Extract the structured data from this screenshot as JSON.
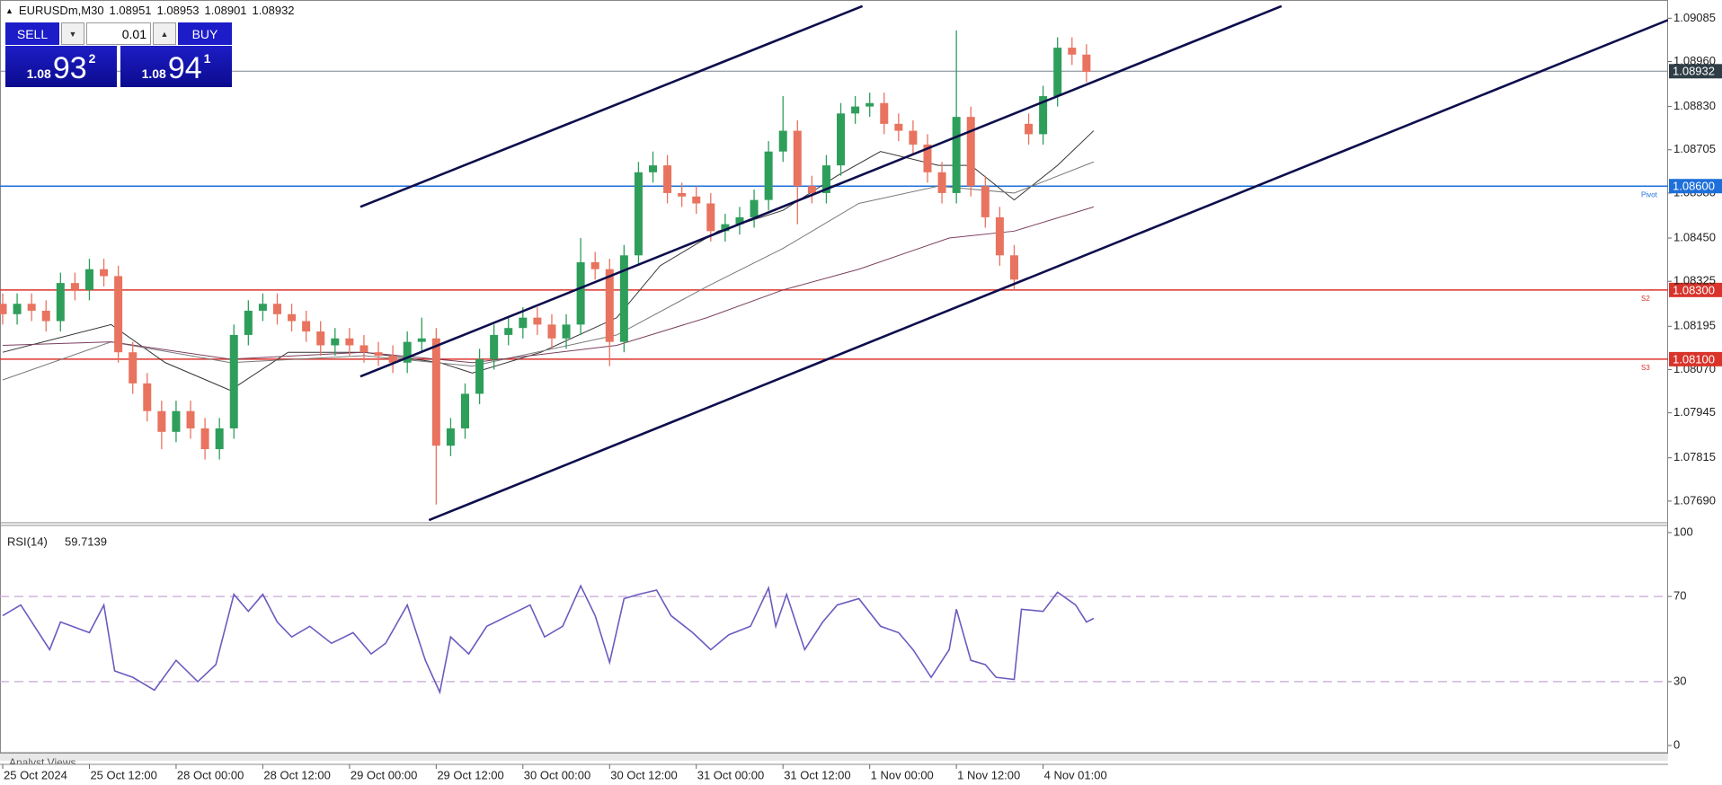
{
  "chart_data": [
    {
      "type": "candlestick",
      "symbol": "EURUSDm,M30",
      "quote": [
        1.08951,
        1.08953,
        1.08901,
        1.08932
      ],
      "xlim": [
        0,
        461
      ],
      "xticks": [
        {
          "value": 0,
          "label": "25 Oct 2024"
        },
        {
          "value": 24,
          "label": "25 Oct 12:00"
        },
        {
          "value": 48,
          "label": "28 Oct 00:00"
        },
        {
          "value": 72,
          "label": "28 Oct 12:00"
        },
        {
          "value": 96,
          "label": "29 Oct 00:00"
        },
        {
          "value": 120,
          "label": "29 Oct 12:00"
        },
        {
          "value": 144,
          "label": "30 Oct 00:00"
        },
        {
          "value": 168,
          "label": "30 Oct 12:00"
        },
        {
          "value": 192,
          "label": "31 Oct 00:00"
        },
        {
          "value": 216,
          "label": "31 Oct 12:00"
        },
        {
          "value": 240,
          "label": "1 Nov 00:00"
        },
        {
          "value": 264,
          "label": "1 Nov 12:00"
        },
        {
          "value": 288,
          "label": "4 Nov 01:00"
        }
      ],
      "ylim": [
        1.0763,
        1.0913
      ],
      "yticks": [
        1.09085,
        {
          "value": 1.0896,
          "label": "1.08960"
        },
        {
          "value": 1.0883,
          "label": "1.08830"
        },
        1.08705,
        {
          "value": 1.0858,
          "label": "1.08580"
        },
        {
          "value": 1.0845,
          "label": "1.08450"
        },
        1.08325,
        1.08195,
        {
          "value": 1.0807,
          "label": "1.08070"
        },
        1.07945,
        1.07815,
        {
          "value": 1.0769,
          "label": "1.07690"
        }
      ],
      "up_color": "#2e9e5b",
      "down_color": "#e8735f",
      "candles": {
        "x": [
          0,
          4,
          8,
          12,
          16,
          20,
          24,
          28,
          32,
          36,
          40,
          44,
          48,
          52,
          56,
          60,
          64,
          68,
          72,
          76,
          80,
          84,
          88,
          92,
          96,
          100,
          104,
          108,
          112,
          116,
          120,
          124,
          128,
          132,
          136,
          140,
          144,
          148,
          152,
          156,
          160,
          164,
          168,
          172,
          176,
          180,
          184,
          188,
          192,
          196,
          200,
          204,
          208,
          212,
          216,
          220,
          224,
          228,
          232,
          236,
          240,
          244,
          248,
          252,
          256,
          260,
          264,
          268,
          272,
          276,
          280,
          284,
          288,
          292,
          296,
          300
        ],
        "open": [
          1.0826,
          1.0823,
          1.0826,
          1.0824,
          1.0821,
          1.0832,
          1.083,
          1.0836,
          1.0834,
          1.0812,
          1.0803,
          1.0795,
          1.0789,
          1.0795,
          1.079,
          1.0784,
          1.079,
          1.0817,
          1.0824,
          1.0826,
          1.0823,
          1.0821,
          1.0818,
          1.0814,
          1.0816,
          1.0814,
          1.0812,
          1.0811,
          1.0809,
          1.0815,
          1.0816,
          1.0785,
          1.079,
          1.08,
          1.081,
          1.0817,
          1.0819,
          1.0822,
          1.082,
          1.0816,
          1.082,
          1.0838,
          1.0836,
          1.0815,
          1.084,
          1.0864,
          1.0866,
          1.0858,
          1.0857,
          1.0855,
          1.0847,
          1.0849,
          1.0851,
          1.0856,
          1.087,
          1.0876,
          1.086,
          1.0858,
          1.0866,
          1.0881,
          1.0883,
          1.0884,
          1.0878,
          1.0876,
          1.0872,
          1.0864,
          1.0858,
          1.088,
          1.086,
          1.0851,
          1.084,
          1.0878,
          1.0875,
          1.0886,
          1.09,
          1.0898
        ],
        "high": [
          1.0829,
          1.0829,
          1.0829,
          1.0827,
          1.0835,
          1.0835,
          1.0839,
          1.0839,
          1.0837,
          1.0815,
          1.0806,
          1.0798,
          1.0798,
          1.0798,
          1.0793,
          1.0793,
          1.082,
          1.0827,
          1.0829,
          1.0829,
          1.0826,
          1.0824,
          1.0821,
          1.0819,
          1.0819,
          1.0817,
          1.0815,
          1.0814,
          1.0818,
          1.0822,
          1.0819,
          1.0793,
          1.0803,
          1.0813,
          1.082,
          1.0822,
          1.0825,
          1.0825,
          1.0823,
          1.0823,
          1.0845,
          1.0841,
          1.0839,
          1.0843,
          1.0867,
          1.087,
          1.0869,
          1.0861,
          1.086,
          1.0858,
          1.0852,
          1.0854,
          1.0859,
          1.0873,
          1.0886,
          1.0879,
          1.0863,
          1.0869,
          1.0884,
          1.0886,
          1.0887,
          1.0887,
          1.0881,
          1.0879,
          1.0875,
          1.0867,
          1.0905,
          1.0883,
          1.0863,
          1.0854,
          1.0843,
          1.0881,
          1.0889,
          1.0903,
          1.0903,
          1.0901
        ],
        "low": [
          1.082,
          1.082,
          1.0821,
          1.0818,
          1.0818,
          1.0827,
          1.0827,
          1.0831,
          1.0809,
          1.08,
          1.0792,
          1.0784,
          1.0786,
          1.0787,
          1.0781,
          1.0781,
          1.0787,
          1.0814,
          1.0821,
          1.082,
          1.0818,
          1.0815,
          1.0811,
          1.0811,
          1.0811,
          1.0809,
          1.0808,
          1.0806,
          1.0806,
          1.0812,
          1.0768,
          1.0782,
          1.0787,
          1.0797,
          1.0807,
          1.0814,
          1.0816,
          1.0817,
          1.0813,
          1.0813,
          1.0817,
          1.0833,
          1.0808,
          1.0812,
          1.0837,
          1.0861,
          1.0855,
          1.0854,
          1.0852,
          1.0844,
          1.0844,
          1.0846,
          1.0848,
          1.0853,
          1.0867,
          1.0849,
          1.0855,
          1.0855,
          1.0863,
          1.0878,
          1.088,
          1.0875,
          1.0873,
          1.0869,
          1.0861,
          1.0855,
          1.0855,
          1.0857,
          1.0848,
          1.0837,
          1.083,
          1.0872,
          1.0872,
          1.0883,
          1.0895,
          1.089
        ],
        "close": [
          1.0823,
          1.0826,
          1.0824,
          1.0821,
          1.0832,
          1.083,
          1.0836,
          1.0834,
          1.0812,
          1.0803,
          1.0795,
          1.0789,
          1.0795,
          1.079,
          1.0784,
          1.079,
          1.0817,
          1.0824,
          1.0826,
          1.0823,
          1.0821,
          1.0818,
          1.0814,
          1.0816,
          1.0814,
          1.0812,
          1.0811,
          1.0809,
          1.0815,
          1.0816,
          1.0785,
          1.079,
          1.08,
          1.081,
          1.0817,
          1.0819,
          1.0822,
          1.082,
          1.0816,
          1.082,
          1.0838,
          1.0836,
          1.0815,
          1.084,
          1.0864,
          1.0866,
          1.0858,
          1.0857,
          1.0855,
          1.0847,
          1.0849,
          1.0851,
          1.0856,
          1.087,
          1.0876,
          1.086,
          1.0858,
          1.0866,
          1.0881,
          1.0883,
          1.0884,
          1.0878,
          1.0876,
          1.0872,
          1.0864,
          1.0858,
          1.088,
          1.086,
          1.0851,
          1.084,
          1.0833,
          1.0875,
          1.0886,
          1.09,
          1.0898,
          1.0893
        ]
      },
      "moving_averages": [
        {
          "color": "#333333",
          "x": [
            0,
            30,
            45,
            63,
            79,
            100,
            121,
            130,
            149,
            170,
            182,
            198,
            216,
            231,
            243,
            259,
            268,
            280,
            292,
            302
          ],
          "values": [
            1.0812,
            1.082,
            1.0809,
            1.0801,
            1.0812,
            1.0812,
            1.0809,
            1.0806,
            1.0812,
            1.0822,
            1.0837,
            1.0847,
            1.0853,
            1.0863,
            1.087,
            1.0866,
            1.0866,
            1.0856,
            1.0866,
            1.0876
          ]
        },
        {
          "color": "#7a7a7a",
          "x": [
            0,
            30,
            63,
            100,
            130,
            170,
            195,
            216,
            237,
            259,
            280,
            302
          ],
          "values": [
            1.0804,
            1.0815,
            1.0809,
            1.0811,
            1.0808,
            1.0817,
            1.0831,
            1.0842,
            1.0855,
            1.086,
            1.0858,
            1.0867
          ]
        },
        {
          "color": "#7b3f5e",
          "x": [
            0,
            30,
            63,
            100,
            130,
            170,
            195,
            216,
            237,
            262,
            280,
            302
          ],
          "values": [
            1.0814,
            1.0815,
            1.081,
            1.0812,
            1.0809,
            1.0814,
            1.0822,
            1.083,
            1.0836,
            1.0845,
            1.0847,
            1.0854
          ]
        }
      ],
      "channel": {
        "color": "#0d0d4d",
        "lines": [
          {
            "x": [
              99,
              238
            ],
            "values": [
              1.0854,
              1.0912
            ]
          },
          {
            "x": [
              99,
              354
            ],
            "values": [
              1.0805,
              1.0912
            ]
          },
          {
            "x": [
              118,
              461
            ],
            "values": [
              1.07635,
              1.0908
            ]
          }
        ]
      },
      "levels": [
        {
          "value": 1.086,
          "label": "1.08600",
          "color": "#1e6fd9",
          "tag": "Pivot"
        },
        {
          "value": 1.083,
          "label": "1.08300",
          "color": "#d9342b",
          "tag": "S2"
        },
        {
          "value": 1.081,
          "label": "1.08100",
          "color": "#d9342b",
          "tag": "S3"
        }
      ],
      "last_price": 1.08932,
      "last_price_color": "#7a8690"
    },
    {
      "type": "line",
      "title": "RSI(14)",
      "current": 59.7139,
      "color": "#6b5bbf",
      "ylim": [
        0,
        100
      ],
      "yticks": [
        0,
        30,
        70,
        100
      ],
      "levels": [
        30,
        70
      ],
      "x": [
        0,
        5,
        13,
        16,
        24,
        28,
        31,
        36,
        42,
        48,
        54,
        59,
        64,
        68,
        72,
        76,
        80,
        85,
        91,
        97,
        102,
        106,
        112,
        117,
        121,
        124,
        129,
        134,
        140,
        146,
        150,
        155,
        160,
        164,
        168,
        172,
        176,
        181,
        185,
        191,
        196,
        201,
        207,
        212,
        214,
        217,
        222,
        227,
        231,
        237,
        243,
        248,
        252,
        257,
        262,
        264,
        268,
        272,
        275,
        280,
        282,
        288,
        292,
        297,
        300,
        302
      ],
      "values": [
        61,
        66,
        45,
        58,
        53,
        66,
        35,
        32,
        26,
        40,
        30,
        38,
        71,
        63,
        71,
        58,
        51,
        56,
        48,
        53,
        43,
        48,
        66,
        40,
        25,
        51,
        43,
        56,
        61,
        66,
        51,
        56,
        75,
        61,
        39,
        69,
        71,
        73,
        61,
        53,
        45,
        52,
        56,
        74,
        56,
        71,
        45,
        58,
        66,
        69,
        56,
        53,
        45,
        32,
        45,
        64,
        40,
        38,
        32,
        31,
        64,
        63,
        72,
        66,
        58,
        59.7
      ]
    }
  ],
  "trade_panel": {
    "sell": "SELL",
    "buy": "BUY",
    "volume": "0.01",
    "bid": {
      "prefix": "1.08",
      "big": "93",
      "small": "2"
    },
    "ask": {
      "prefix": "1.08",
      "big": "94",
      "small": "1"
    }
  },
  "tabs": [
    "Analyst Views"
  ]
}
